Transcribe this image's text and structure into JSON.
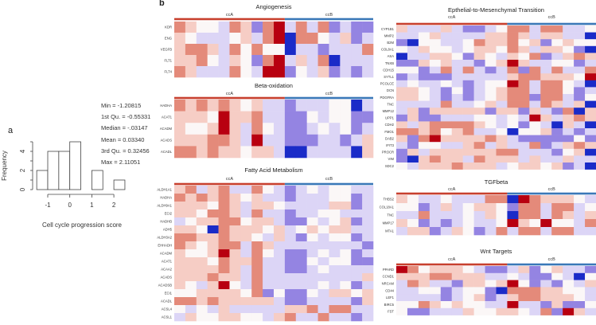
{
  "panel_labels": {
    "a": "a",
    "b": "b"
  },
  "stats": {
    "min": "Min = -1.20815",
    "q1": "1st Qu. = -0.55331",
    "median": "Median = -.03147",
    "mean": "Mean = 0.03340",
    "q3": "3rd Qu. = 0.32456",
    "max": "Max = 2.11051"
  },
  "colors": {
    "ccA": "#c8402e",
    "ccB": "#3a78b8",
    "high": "#b80010",
    "low": "#1a2bc8",
    "mid": "#fbf7f7"
  },
  "chart_data": [
    {
      "type": "bar",
      "subtype": "histogram",
      "bin_edges": [
        -1.5,
        -1.0,
        -0.5,
        0.0,
        0.5,
        1.0,
        1.5,
        2.0,
        2.5
      ],
      "values": [
        2,
        4,
        4,
        5,
        0,
        2,
        0,
        1
      ],
      "xlabel": "Cell cycle progression score",
      "ylabel": "Frequency",
      "xticks": [
        "-1",
        "0",
        "1",
        "2"
      ],
      "xtick_values": [
        -1,
        0,
        1,
        2
      ],
      "yticks": [
        "0",
        "2",
        "4"
      ],
      "ytick_values": [
        0,
        2,
        4
      ],
      "ylim": [
        0,
        5
      ]
    },
    {
      "type": "heatmap",
      "title": "Angiogenesis",
      "groups": [
        "ccA",
        "ccB"
      ],
      "group_sizes": [
        10,
        8
      ],
      "rows": [
        "KDR",
        "ENG",
        "VEGFB",
        "FLT1",
        "FLT4"
      ],
      "values": [
        [
          2,
          1,
          0,
          0,
          -1,
          2,
          1,
          -2,
          2,
          3,
          -1,
          2,
          -1,
          2,
          -2,
          -1,
          -2,
          -2
        ],
        [
          1,
          0,
          -1,
          -1,
          -1,
          0,
          1,
          -1,
          2,
          3,
          -3,
          2,
          2,
          0,
          -1,
          1,
          -2,
          -1
        ],
        [
          1,
          2,
          2,
          1,
          -1,
          2,
          0,
          2,
          0,
          0,
          -3,
          -1,
          -1,
          -2,
          -1,
          -1,
          -1,
          2
        ],
        [
          1,
          1,
          2,
          0,
          -1,
          1,
          0,
          -2,
          2,
          3,
          -1,
          1,
          -1,
          2,
          -3,
          -1,
          -1,
          -1
        ],
        [
          2,
          1,
          -1,
          -1,
          -1,
          2,
          0,
          -1,
          3,
          3,
          -2,
          0,
          -1,
          1,
          -2,
          -1,
          -2,
          -1
        ]
      ]
    },
    {
      "type": "heatmap",
      "title": "Beta-oxidation",
      "groups": [
        "ccA",
        "ccB"
      ],
      "group_sizes": [
        10,
        8
      ],
      "rows": [
        "HADHA",
        "ACAT1",
        "ACADM",
        "ACADS",
        "ACADL"
      ],
      "values": [
        [
          2,
          1,
          2,
          1,
          2,
          1,
          0,
          1,
          -1,
          -1,
          -2,
          -1,
          -1,
          -1,
          0,
          0,
          -3,
          -1
        ],
        [
          1,
          1,
          1,
          0,
          3,
          1,
          1,
          2,
          -1,
          -1,
          -2,
          -2,
          0,
          -1,
          0,
          0,
          -2,
          -2
        ],
        [
          1,
          0,
          0,
          1,
          3,
          1,
          -1,
          2,
          0,
          -1,
          -2,
          -2,
          -1,
          0,
          -1,
          0,
          -2,
          -1
        ],
        [
          1,
          1,
          1,
          2,
          2,
          1,
          -1,
          3,
          -1,
          -1,
          -2,
          -2,
          -2,
          -1,
          -1,
          -2,
          -1,
          1
        ],
        [
          2,
          2,
          1,
          2,
          1,
          1,
          0,
          1,
          1,
          -1,
          -3,
          -3,
          -1,
          -1,
          -1,
          -1,
          -3,
          1
        ]
      ]
    },
    {
      "type": "heatmap",
      "title": "Fatty Acid Metabolism",
      "groups": [
        "ccA",
        "ccB"
      ],
      "group_sizes": [
        10,
        8
      ],
      "rows": [
        "ALDH1A1",
        "HADHA",
        "ALDH9A1",
        "ECI2",
        "HADHB",
        "ADH5",
        "ALDH3A2",
        "EHHADH",
        "ACADM",
        "ACAT1",
        "ACAA2",
        "ACADS",
        "ACADSB",
        "ECI1",
        "ACADL",
        "ACSL4",
        "ACSL1"
      ],
      "values": [
        [
          1,
          2,
          -1,
          1,
          2,
          -1,
          -1,
          2,
          0,
          -1,
          -2,
          -1,
          0,
          -1,
          0,
          0,
          -1,
          -1
        ],
        [
          2,
          1,
          2,
          1,
          2,
          1,
          0,
          1,
          -1,
          -1,
          -2,
          -1,
          -1,
          -1,
          0,
          0,
          -2,
          -1
        ],
        [
          1,
          1,
          1,
          0,
          2,
          1,
          -1,
          1,
          1,
          0,
          -1,
          -1,
          -1,
          -1,
          1,
          1,
          -2,
          -1
        ],
        [
          1,
          1,
          0,
          2,
          2,
          1,
          -1,
          2,
          -1,
          -1,
          -2,
          -1,
          -1,
          0,
          0,
          -1,
          -1,
          -1
        ],
        [
          -1,
          0,
          1,
          1,
          2,
          2,
          0,
          1,
          1,
          -1,
          -2,
          -2,
          0,
          -1,
          0,
          1,
          -2,
          -1
        ],
        [
          1,
          1,
          0,
          -3,
          2,
          1,
          1,
          1,
          0,
          1,
          -1,
          0,
          1,
          0,
          1,
          1,
          -1,
          -1
        ],
        [
          2,
          2,
          1,
          1,
          2,
          1,
          1,
          0,
          -1,
          1,
          -1,
          -2,
          0,
          -1,
          0,
          0,
          -2,
          -1
        ],
        [
          2,
          1,
          0,
          1,
          2,
          2,
          -1,
          2,
          1,
          -1,
          -1,
          -1,
          -1,
          -1,
          -1,
          -1,
          -1,
          -2
        ],
        [
          1,
          0,
          0,
          1,
          3,
          1,
          -1,
          2,
          0,
          -1,
          -2,
          -2,
          -1,
          0,
          -1,
          0,
          -2,
          -1
        ],
        [
          1,
          1,
          1,
          0,
          2,
          1,
          1,
          2,
          -1,
          -1,
          -2,
          -2,
          0,
          -1,
          0,
          0,
          -2,
          -2
        ],
        [
          1,
          1,
          1,
          1,
          2,
          1,
          -1,
          2,
          -1,
          -1,
          -2,
          -2,
          -1,
          0,
          -1,
          -1,
          -1,
          -1
        ],
        [
          1,
          1,
          1,
          2,
          1,
          1,
          -1,
          2,
          -1,
          -1,
          -1,
          -1,
          -1,
          -1,
          -1,
          -1,
          -1,
          1
        ],
        [
          1,
          0,
          -1,
          1,
          3,
          0,
          -1,
          2,
          -1,
          -1,
          -1,
          -1,
          -1,
          0,
          -1,
          0,
          -2,
          -1
        ],
        [
          0,
          0,
          1,
          1,
          1,
          1,
          0,
          2,
          -2,
          0,
          -2,
          -2,
          0,
          -1,
          1,
          1,
          0,
          1
        ],
        [
          2,
          2,
          1,
          2,
          1,
          1,
          1,
          1,
          1,
          -1,
          -2,
          -2,
          -1,
          -1,
          -1,
          -1,
          -2,
          1
        ],
        [
          0,
          -1,
          0,
          -1,
          1,
          -1,
          -1,
          -1,
          -1,
          -1,
          1,
          1,
          2,
          -1,
          2,
          2,
          -1,
          -1
        ],
        [
          -1,
          1,
          0,
          0,
          1,
          1,
          0,
          0,
          -1,
          1,
          2,
          -1,
          -1,
          2,
          -1,
          -1,
          -2,
          -1
        ]
      ]
    },
    {
      "type": "heatmap",
      "title": "Epthelial-to-Mesenchymal Transition",
      "groups": [
        "ccA",
        "ccB"
      ],
      "group_sizes": [
        10,
        8
      ],
      "rows": [
        "CYP1B1",
        "MMP2",
        "B2M",
        "COL8A1",
        "ASA",
        "TNXB",
        "CDH15",
        "SYTL1",
        "PCOLCE",
        "DCN",
        "PDGFRA",
        "TNC",
        "MMP12",
        "UPP1",
        "CDH2",
        "FMO1",
        "DAB2",
        "IFIT3",
        "PROCR",
        "VIM",
        "SDC2"
      ],
      "values": [
        [
          1,
          -1,
          -1,
          -1,
          1,
          -1,
          -2,
          -2,
          -1,
          0,
          2,
          2,
          -1,
          2,
          2,
          -1,
          -1,
          0
        ],
        [
          -1,
          -1,
          0,
          1,
          -1,
          -1,
          -1,
          -1,
          1,
          1,
          2,
          1,
          -1,
          1,
          1,
          -1,
          -1,
          -3
        ],
        [
          -2,
          -3,
          0,
          0,
          -1,
          -1,
          0,
          2,
          1,
          1,
          2,
          0,
          1,
          -2,
          0,
          1,
          0,
          0
        ],
        [
          0,
          -1,
          1,
          0,
          0,
          -1,
          0,
          1,
          1,
          0,
          2,
          1,
          -1,
          1,
          1,
          0,
          -2,
          -3
        ],
        [
          -3,
          -1,
          -1,
          1,
          1,
          0,
          -2,
          1,
          0,
          -1,
          1,
          0,
          2,
          -2,
          -1,
          1,
          2,
          1
        ],
        [
          -2,
          -2,
          1,
          0,
          1,
          -1,
          -1,
          -2,
          0,
          1,
          3,
          1,
          -1,
          -1,
          0,
          0,
          -2,
          -1
        ],
        [
          0,
          0,
          -2,
          -1,
          2,
          -1,
          2,
          -1,
          -2,
          -1,
          2,
          -2,
          2,
          -1,
          2,
          -1,
          -1,
          2
        ],
        [
          -2,
          -1,
          -2,
          -2,
          -2,
          -1,
          -1,
          -1,
          -1,
          -1,
          1,
          2,
          2,
          1,
          1,
          1,
          0,
          3
        ],
        [
          -1,
          0,
          -1,
          -1,
          0,
          -1,
          -2,
          -1,
          0,
          0,
          3,
          2,
          -1,
          2,
          2,
          0,
          -1,
          -3
        ],
        [
          1,
          1,
          0,
          -1,
          -2,
          0,
          -2,
          -1,
          0,
          1,
          2,
          2,
          -1,
          2,
          2,
          0,
          -2,
          -1
        ],
        [
          1,
          1,
          0,
          -1,
          -2,
          -1,
          -2,
          -1,
          0,
          1,
          2,
          2,
          -2,
          2,
          2,
          -1,
          -2,
          0
        ],
        [
          -1,
          -1,
          -1,
          -1,
          2,
          -1,
          -1,
          0,
          1,
          -1,
          2,
          2,
          -1,
          2,
          1,
          -1,
          1,
          -3
        ],
        [
          -1,
          1,
          -2,
          1,
          1,
          1,
          1,
          1,
          -2,
          1,
          1,
          -2,
          1,
          -1,
          -2,
          2,
          -3,
          1
        ],
        [
          -2,
          1,
          -2,
          -2,
          -1,
          -1,
          -1,
          0,
          0,
          -1,
          0,
          -1,
          3,
          1,
          -1,
          1,
          2,
          1
        ],
        [
          1,
          -1,
          1,
          2,
          2,
          2,
          2,
          1,
          0,
          -1,
          0,
          -2,
          0,
          -1,
          -3,
          1,
          -1,
          -3
        ],
        [
          2,
          2,
          1,
          2,
          0,
          1,
          2,
          -1,
          -1,
          0,
          -3,
          0,
          0,
          1,
          -2,
          -1,
          -2,
          -1
        ],
        [
          1,
          -2,
          2,
          3,
          1,
          1,
          1,
          1,
          2,
          1,
          -1,
          -2,
          -2,
          -2,
          -2,
          -2,
          0,
          -2
        ],
        [
          -1,
          -2,
          0,
          0,
          -1,
          -1,
          1,
          2,
          -1,
          1,
          -1,
          -1,
          2,
          -2,
          -1,
          1,
          2,
          1
        ],
        [
          -2,
          1,
          -1,
          1,
          1,
          1,
          1,
          1,
          1,
          2,
          2,
          -1,
          -1,
          -1,
          -2,
          0,
          1,
          -3
        ],
        [
          -2,
          -3,
          1,
          2,
          1,
          1,
          -1,
          2,
          1,
          1,
          1,
          -1,
          1,
          -1,
          -1,
          1,
          -1,
          -1
        ],
        [
          0,
          -1,
          1,
          1,
          1,
          2,
          1,
          1,
          1,
          -1,
          0,
          1,
          1,
          0,
          1,
          -2,
          -1,
          -3
        ]
      ]
    },
    {
      "type": "heatmap",
      "title": "TGFbeta",
      "groups": [
        "ccA",
        "ccB"
      ],
      "group_sizes": [
        10,
        8
      ],
      "rows": [
        "THBS2",
        "COL18A1",
        "TNC",
        "MMP17",
        "MTA1"
      ],
      "values": [
        [
          1,
          0,
          -1,
          -1,
          0,
          -1,
          -1,
          -1,
          2,
          2,
          -3,
          3,
          2,
          1,
          1,
          1,
          0,
          -1
        ],
        [
          0,
          0,
          -2,
          -1,
          1,
          -1,
          0,
          1,
          1,
          0,
          -2,
          2,
          2,
          -1,
          2,
          2,
          -1,
          0
        ],
        [
          -1,
          -1,
          2,
          -1,
          -1,
          -1,
          0,
          -1,
          1,
          0,
          -3,
          2,
          2,
          -1,
          2,
          1,
          -1,
          1
        ],
        [
          1,
          0,
          -2,
          -1,
          -2,
          -1,
          0,
          -1,
          -1,
          0,
          3,
          1,
          0,
          3,
          0,
          0,
          -1,
          2
        ],
        [
          -1,
          1,
          1,
          -2,
          -1,
          1,
          0,
          -2,
          -1,
          2,
          -1,
          2,
          2,
          -1,
          2,
          2,
          -1,
          -1
        ]
      ]
    },
    {
      "type": "heatmap",
      "title": "Wnt Targets",
      "groups": [
        "ccA",
        "ccB"
      ],
      "group_sizes": [
        10,
        8
      ],
      "rows": [
        "PPARD",
        "CCND1",
        "NRCAM",
        "CD44",
        "LEF1",
        "BIRC5",
        "FST"
      ],
      "values": [
        [
          3,
          2,
          0,
          1,
          1,
          1,
          0,
          -1,
          -2,
          -2,
          -1,
          1,
          -2,
          0,
          1,
          -1,
          -1,
          -2
        ],
        [
          1,
          1,
          1,
          2,
          2,
          1,
          1,
          1,
          -1,
          -1,
          0,
          -1,
          -2,
          -2,
          0,
          -1,
          -3,
          0
        ],
        [
          -1,
          2,
          1,
          -1,
          -1,
          -2,
          1,
          1,
          0,
          1,
          3,
          0,
          -2,
          -1,
          -2,
          0,
          -1,
          1
        ],
        [
          -1,
          -1,
          0,
          0,
          -2,
          -1,
          0,
          0,
          -2,
          -3,
          2,
          2,
          2,
          1,
          1,
          0,
          0,
          -1
        ],
        [
          -1,
          -1,
          -1,
          -1,
          -2,
          -1,
          0,
          1,
          -2,
          -1,
          1,
          2,
          2,
          1,
          1,
          1,
          0,
          -1
        ],
        [
          0,
          0,
          2,
          1,
          0,
          1,
          0,
          0,
          -1,
          -1,
          3,
          -1,
          -1,
          -2,
          1,
          -2,
          -2,
          0
        ],
        [
          0,
          -2,
          -2,
          -1,
          -1,
          -1,
          1,
          0,
          0,
          1,
          1,
          0,
          -1,
          2,
          -2,
          3,
          1,
          -1
        ]
      ]
    }
  ]
}
